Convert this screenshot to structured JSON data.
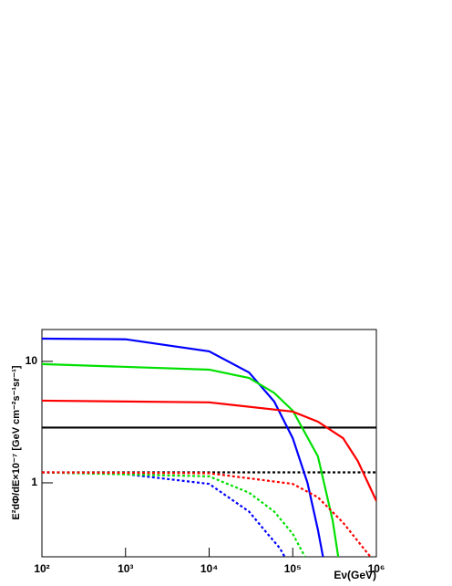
{
  "chart_data": {
    "type": "line",
    "xlabel": "Eν(GeV)",
    "ylabel": "E²dΦ/dE×10⁻⁷ [GeV cm⁻²s⁻¹sr⁻¹]",
    "xlog": true,
    "ylog": true,
    "xlim": [
      100,
      1000000
    ],
    "ylim": [
      0.246,
      18.3
    ],
    "xticks": [
      {
        "value": 100,
        "label": "10²"
      },
      {
        "value": 1000,
        "label": "10³"
      },
      {
        "value": 10000,
        "label": "10⁴"
      },
      {
        "value": 100000,
        "label": "10⁵"
      },
      {
        "value": 1000000,
        "label": "10⁶"
      }
    ],
    "yticks": [
      1,
      10
    ],
    "series": [
      {
        "color": "#000000",
        "style": "solid",
        "x": [
          100,
          1000000
        ],
        "values": [
          2.85,
          2.85
        ]
      },
      {
        "color": "#000000",
        "style": "dotted",
        "x": [
          100,
          1000000
        ],
        "values": [
          1.22,
          1.22
        ]
      },
      {
        "color": "#0000ff",
        "style": "solid",
        "x": [
          100,
          1000,
          10000,
          30000,
          60000,
          100000,
          150000,
          200000,
          230000
        ],
        "values": [
          15.4,
          15.2,
          12.1,
          8.1,
          4.67,
          2.33,
          1.0,
          0.41,
          0.246
        ]
      },
      {
        "color": "#00e000",
        "style": "solid",
        "x": [
          100,
          10000,
          30000,
          60000,
          100000,
          200000,
          300000,
          350000
        ],
        "values": [
          9.5,
          8.55,
          7.3,
          5.5,
          3.93,
          1.65,
          0.49,
          0.246
        ]
      },
      {
        "color": "#ff0000",
        "style": "solid",
        "x": [
          100,
          10000,
          100000,
          200000,
          400000,
          600000,
          1000000
        ],
        "values": [
          4.75,
          4.6,
          3.86,
          3.19,
          2.33,
          1.51,
          0.71
        ]
      },
      {
        "color": "#0000ff",
        "style": "dotted",
        "x": [
          100,
          1000,
          10000,
          30000,
          50000,
          70000,
          80000
        ],
        "values": [
          1.22,
          1.18,
          0.98,
          0.58,
          0.38,
          0.29,
          0.246
        ]
      },
      {
        "color": "#00e000",
        "style": "dotted",
        "x": [
          100,
          10000,
          30000,
          60000,
          100000,
          140000
        ],
        "values": [
          1.22,
          1.13,
          0.83,
          0.58,
          0.38,
          0.246
        ]
      },
      {
        "color": "#ff0000",
        "style": "dotted",
        "x": [
          100,
          10000,
          100000,
          200000,
          400000,
          700000,
          850000
        ],
        "values": [
          1.22,
          1.2,
          0.98,
          0.76,
          0.47,
          0.29,
          0.246
        ]
      }
    ]
  }
}
